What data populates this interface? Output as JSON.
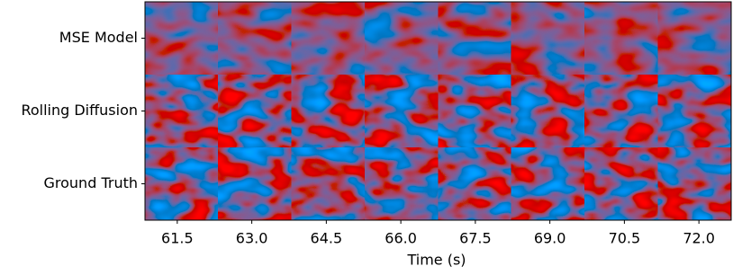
{
  "chart_data": {
    "type": "image_grid",
    "rows": [
      "MSE Model",
      "Rolling Diffusion",
      "Ground Truth"
    ],
    "xlabel": "Time (s)",
    "xlim": [
      60.85,
      72.65
    ],
    "xticks": [
      61.5,
      {
        "value": 63,
        "label": "63.0"
      },
      64.5,
      {
        "value": 66,
        "label": "66.0"
      },
      67.5,
      {
        "value": 69,
        "label": "69.0"
      },
      70.5,
      {
        "value": 72,
        "label": "72.0"
      }
    ]
  }
}
